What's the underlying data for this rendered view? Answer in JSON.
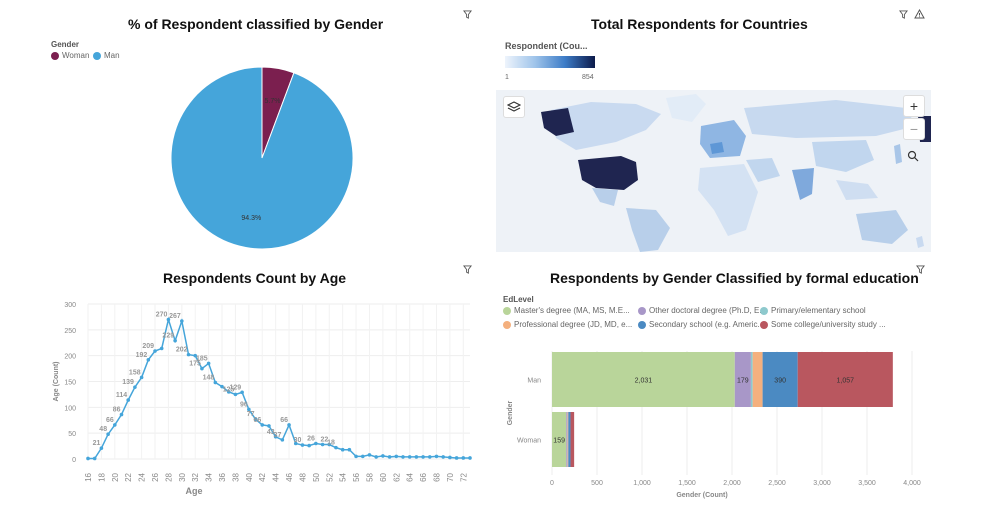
{
  "icons": {
    "filter": "filter-icon",
    "warning": "warning-icon",
    "layers": "layers-icon",
    "zoom_in": "zoom-in-icon",
    "zoom_out": "zoom-out-icon",
    "search": "search-icon"
  },
  "controls": {
    "zoom_in": "+",
    "zoom_out": "−"
  },
  "chart_data": [
    {
      "type": "pie",
      "title": "% of Respondent classified by Gender",
      "legend_title": "Gender",
      "labels": [
        "Woman",
        "Man"
      ],
      "values": [
        5.7,
        94.3
      ],
      "display_labels": [
        "5.7%",
        "94.3%"
      ],
      "colors": [
        "#7b1f4f",
        "#45a5da"
      ]
    },
    {
      "type": "map",
      "title": "Total Respondents for Countries",
      "legend_title": "Respondent (Cou...",
      "range": [
        1,
        854
      ],
      "range_labels": [
        "1",
        "854"
      ]
    },
    {
      "type": "line",
      "title": "Respondents Count by Age",
      "xlabel": "Age",
      "ylabel": "Age (Count)",
      "ylim": [
        0,
        300
      ],
      "yticks": [
        0,
        50,
        100,
        150,
        200,
        250,
        300
      ],
      "xlim": [
        16,
        73
      ],
      "xticks": [
        16,
        18,
        20,
        22,
        24,
        26,
        28,
        30,
        32,
        34,
        36,
        38,
        40,
        42,
        44,
        46,
        48,
        50,
        52,
        54,
        56,
        58,
        60,
        62,
        64,
        66,
        68,
        70,
        72
      ],
      "x": [
        16,
        17,
        18,
        19,
        20,
        21,
        22,
        23,
        24,
        25,
        26,
        27,
        28,
        29,
        30,
        31,
        32,
        33,
        34,
        35,
        36,
        37,
        38,
        39,
        40,
        41,
        42,
        43,
        44,
        45,
        46,
        47,
        48,
        49,
        50,
        51,
        52,
        53,
        54,
        55,
        56,
        57,
        58,
        59,
        60,
        61,
        62,
        63,
        64,
        65,
        66,
        67,
        68,
        69,
        70,
        71,
        72,
        73
      ],
      "y": [
        1,
        1,
        21,
        48,
        66,
        86,
        114,
        139,
        158,
        192,
        209,
        214,
        270,
        229,
        267,
        202,
        200,
        175,
        185,
        148,
        140,
        130,
        125,
        129,
        96,
        77,
        66,
        64,
        43,
        37,
        66,
        30,
        27,
        26,
        30,
        28,
        28,
        22,
        18,
        18,
        5,
        5,
        8,
        4,
        6,
        4,
        5,
        4,
        4,
        4,
        4,
        4,
        5,
        4,
        3,
        2,
        2,
        2
      ],
      "data_labels": [
        {
          "x": 18,
          "label": "21"
        },
        {
          "x": 19,
          "label": "48"
        },
        {
          "x": 20,
          "label": "66"
        },
        {
          "x": 21,
          "label": "86"
        },
        {
          "x": 22,
          "label": "114"
        },
        {
          "x": 23,
          "label": "139"
        },
        {
          "x": 24,
          "label": "158"
        },
        {
          "x": 25,
          "label": "192"
        },
        {
          "x": 26,
          "label": "209"
        },
        {
          "x": 28,
          "label": "270"
        },
        {
          "x": 29,
          "label": "229"
        },
        {
          "x": 30,
          "label": "267"
        },
        {
          "x": 31,
          "label": "202"
        },
        {
          "x": 33,
          "label": "175"
        },
        {
          "x": 34,
          "label": "185"
        },
        {
          "x": 35,
          "label": "148"
        },
        {
          "x": 38,
          "label": "125"
        },
        {
          "x": 39,
          "label": "129"
        },
        {
          "x": 40,
          "label": "96"
        },
        {
          "x": 41,
          "label": "77"
        },
        {
          "x": 42,
          "label": "66"
        },
        {
          "x": 44,
          "label": "43"
        },
        {
          "x": 45,
          "label": "37"
        },
        {
          "x": 46,
          "label": "66"
        },
        {
          "x": 48,
          "label": "30"
        },
        {
          "x": 50,
          "label": "26"
        },
        {
          "x": 52,
          "label": "22"
        },
        {
          "x": 53,
          "label": "18"
        }
      ],
      "color": "#45a5da"
    },
    {
      "type": "bar",
      "orientation": "horizontal",
      "stacked": true,
      "title": "Respondents by Gender Classified by formal education",
      "legend_title": "EdLevel",
      "ylabel": "Gender",
      "xlabel": "Gender (Count)",
      "categories": [
        "Man",
        "Woman"
      ],
      "xlim": [
        0,
        4000
      ],
      "xticks": [
        0,
        500,
        1000,
        1500,
        2000,
        2500,
        3000,
        3500,
        4000
      ],
      "xtick_labels": [
        "0",
        "500",
        "1,000",
        "1,500",
        "2,000",
        "2,500",
        "3,000",
        "3,500",
        "4,000"
      ],
      "series": [
        {
          "name": "Master's degree (MA, MS, M.E...",
          "color": "#b9d59a",
          "values": [
            2031,
            159
          ],
          "labels": [
            "2,031",
            "159"
          ]
        },
        {
          "name": "Other doctoral degree (Ph.D, E...",
          "color": "#a897c8",
          "values": [
            179,
            12
          ],
          "labels": [
            "179",
            ""
          ]
        },
        {
          "name": "Primary/elementary school",
          "color": "#8ec9cd",
          "values": [
            20,
            2
          ],
          "labels": [
            "",
            ""
          ]
        },
        {
          "name": "Professional degree (JD, MD, e...",
          "color": "#f4b07e",
          "values": [
            110,
            8
          ],
          "labels": [
            "",
            ""
          ]
        },
        {
          "name": "Secondary school (e.g. Americ...",
          "color": "#4b8ac2",
          "values": [
            390,
            25
          ],
          "labels": [
            "390",
            ""
          ]
        },
        {
          "name": "Some college/university study ...",
          "color": "#b9575f",
          "values": [
            1057,
            40
          ],
          "labels": [
            "1,057",
            ""
          ]
        }
      ]
    }
  ]
}
